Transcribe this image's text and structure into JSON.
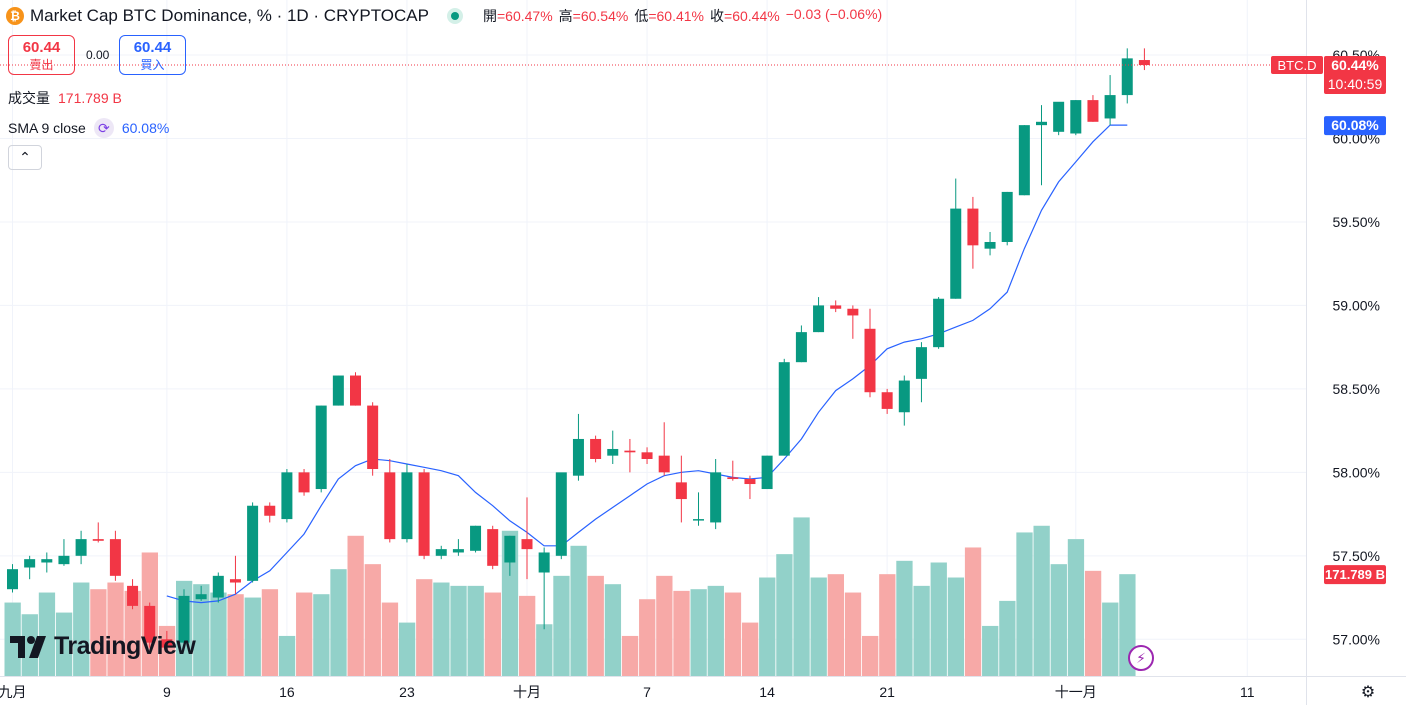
{
  "header": {
    "coin_glyph": "₿",
    "title": "Market Cap BTC Dominance, % · 1D · CRYPTOCAP",
    "ohlc": [
      {
        "k": "開",
        "v": "=60.47%"
      },
      {
        "k": "高",
        "v": "=60.54%"
      },
      {
        "k": "低",
        "v": "=60.41%"
      },
      {
        "k": "收",
        "v": "=60.44%"
      },
      {
        "k": "",
        "v": "−0.03 (−0.06%)"
      }
    ]
  },
  "trade": {
    "sell_price": "60.44",
    "sell_label": "賣出",
    "spread": "0.00",
    "buy_price": "60.44",
    "buy_label": "買入"
  },
  "legend": {
    "volume_label": "成交量",
    "volume_value": "171.789 B",
    "sma_label": "SMA 9 close",
    "sma_value": "60.08%",
    "collapse_glyph": "⌃"
  },
  "branding": {
    "logo_text": "TradingView"
  },
  "colors": {
    "up": "#089981",
    "down": "#f23645",
    "up_vol": "#92d1c9",
    "down_vol": "#f7a9a7",
    "sma": "#2962ff",
    "grid": "#f0f3fa"
  },
  "chart_data": {
    "type": "candlestick",
    "symbol_tag": "BTC.D",
    "y_axis": {
      "min": 56.78,
      "max": 60.62,
      "ticks": [
        "57.00%",
        "57.50%",
        "58.00%",
        "58.50%",
        "59.00%",
        "59.50%",
        "60.00%",
        "60.50%"
      ]
    },
    "x_axis": {
      "labels": [
        {
          "i": 0,
          "text": "九月"
        },
        {
          "i": 9,
          "text": "9"
        },
        {
          "i": 16,
          "text": "16"
        },
        {
          "i": 23,
          "text": "23"
        },
        {
          "i": 30,
          "text": "十月"
        },
        {
          "i": 37,
          "text": "7"
        },
        {
          "i": 44,
          "text": "14"
        },
        {
          "i": 51,
          "text": "21"
        },
        {
          "i": 62,
          "text": "十一月"
        },
        {
          "i": 72,
          "text": "11"
        }
      ]
    },
    "price_labels": {
      "last_price": "60.44%",
      "countdown": "10:40:59",
      "sma": "60.08%",
      "volume": "171.789 B"
    },
    "candles": [
      [
        57.3,
        57.45,
        57.28,
        57.42
      ],
      [
        57.43,
        57.5,
        57.36,
        57.48
      ],
      [
        57.46,
        57.52,
        57.4,
        57.48
      ],
      [
        57.45,
        57.6,
        57.44,
        57.5
      ],
      [
        57.5,
        57.65,
        57.45,
        57.6
      ],
      [
        57.6,
        57.7,
        57.58,
        57.59
      ],
      [
        57.6,
        57.65,
        57.35,
        57.38
      ],
      [
        57.32,
        57.36,
        57.18,
        57.2
      ],
      [
        57.2,
        57.22,
        56.95,
        56.98
      ],
      [
        57.0,
        57.05,
        56.92,
        56.95
      ],
      [
        56.98,
        57.3,
        56.95,
        57.26
      ],
      [
        57.24,
        57.32,
        57.23,
        57.27
      ],
      [
        57.25,
        57.4,
        57.22,
        57.38
      ],
      [
        57.36,
        57.5,
        57.27,
        57.34
      ],
      [
        57.35,
        57.82,
        57.34,
        57.8
      ],
      [
        57.8,
        57.82,
        57.7,
        57.74
      ],
      [
        57.72,
        58.02,
        57.7,
        58.0
      ],
      [
        58.0,
        58.02,
        57.86,
        57.88
      ],
      [
        57.9,
        58.4,
        57.88,
        58.4
      ],
      [
        58.4,
        58.58,
        58.4,
        58.58
      ],
      [
        58.58,
        58.6,
        58.4,
        58.4
      ],
      [
        58.4,
        58.42,
        57.98,
        58.02
      ],
      [
        58.0,
        58.08,
        57.58,
        57.6
      ],
      [
        57.6,
        58.05,
        57.58,
        58.0
      ],
      [
        58.0,
        58.02,
        57.48,
        57.5
      ],
      [
        57.5,
        57.56,
        57.48,
        57.54
      ],
      [
        57.52,
        57.6,
        57.5,
        57.54
      ],
      [
        57.53,
        57.68,
        57.52,
        57.68
      ],
      [
        57.66,
        57.68,
        57.42,
        57.44
      ],
      [
        57.46,
        57.62,
        57.38,
        57.62
      ],
      [
        57.6,
        57.85,
        57.36,
        57.54
      ],
      [
        57.4,
        57.55,
        57.06,
        57.52
      ],
      [
        57.5,
        57.98,
        57.48,
        58.0
      ],
      [
        57.98,
        58.35,
        57.95,
        58.2
      ],
      [
        58.2,
        58.22,
        58.06,
        58.08
      ],
      [
        58.1,
        58.25,
        58.05,
        58.14
      ],
      [
        58.13,
        58.2,
        58.0,
        58.12
      ],
      [
        58.12,
        58.15,
        58.05,
        58.08
      ],
      [
        58.1,
        58.3,
        57.98,
        58.0
      ],
      [
        57.94,
        58.1,
        57.7,
        57.84
      ],
      [
        57.72,
        57.88,
        57.68,
        57.72
      ],
      [
        57.7,
        58.08,
        57.66,
        58.0
      ],
      [
        57.97,
        58.07,
        57.95,
        57.96
      ],
      [
        57.96,
        57.98,
        57.84,
        57.93
      ],
      [
        57.9,
        58.1,
        57.9,
        58.1
      ],
      [
        58.1,
        58.68,
        58.1,
        58.66
      ],
      [
        58.66,
        58.88,
        58.66,
        58.84
      ],
      [
        58.84,
        59.05,
        58.84,
        59.0
      ],
      [
        59.0,
        59.03,
        58.96,
        58.98
      ],
      [
        58.98,
        59.0,
        58.8,
        58.94
      ],
      [
        58.86,
        58.98,
        58.45,
        58.48
      ],
      [
        58.48,
        58.5,
        58.35,
        58.38
      ],
      [
        58.36,
        58.58,
        58.28,
        58.55
      ],
      [
        58.56,
        58.78,
        58.42,
        58.75
      ],
      [
        58.75,
        59.05,
        58.74,
        59.04
      ],
      [
        59.04,
        59.76,
        59.04,
        59.58
      ],
      [
        59.58,
        59.65,
        59.22,
        59.36
      ],
      [
        59.34,
        59.44,
        59.3,
        59.38
      ],
      [
        59.38,
        59.68,
        59.36,
        59.68
      ],
      [
        59.66,
        60.08,
        59.66,
        60.08
      ],
      [
        60.08,
        60.2,
        59.72,
        60.1
      ],
      [
        60.04,
        60.2,
        60.02,
        60.22
      ],
      [
        60.03,
        60.23,
        60.02,
        60.23
      ],
      [
        60.23,
        60.26,
        60.1,
        60.1
      ],
      [
        60.12,
        60.38,
        60.08,
        60.26
      ],
      [
        60.26,
        60.54,
        60.21,
        60.48
      ],
      [
        60.47,
        60.54,
        60.41,
        60.44
      ]
    ],
    "volume_tops": [
      57.22,
      57.15,
      57.28,
      57.16,
      57.34,
      57.3,
      57.34,
      57.29,
      57.52,
      57.08,
      57.35,
      57.33,
      57.28,
      57.27,
      57.25,
      57.3,
      57.02,
      57.28,
      57.27,
      57.42,
      57.62,
      57.45,
      57.22,
      57.1,
      57.36,
      57.34,
      57.32,
      57.32,
      57.28,
      57.65,
      57.26,
      57.09,
      57.38,
      57.56,
      57.38,
      57.33,
      57.02,
      57.24,
      57.38,
      57.29,
      57.3,
      57.32,
      57.28,
      57.1,
      57.37,
      57.51,
      57.73,
      57.37,
      57.39,
      57.28,
      57.02,
      57.39,
      57.47,
      57.32,
      57.46,
      57.37,
      57.55,
      57.08,
      57.23,
      57.64,
      57.68,
      57.45,
      57.6,
      57.41,
      57.22,
      57.39
    ],
    "sma": [
      null,
      null,
      null,
      null,
      null,
      null,
      null,
      null,
      null,
      57.26,
      57.23,
      57.22,
      57.23,
      57.27,
      57.35,
      57.41,
      57.52,
      57.63,
      57.8,
      57.96,
      58.04,
      58.08,
      58.07,
      58.05,
      58.03,
      58.01,
      57.98,
      57.88,
      57.8,
      57.71,
      57.64,
      57.56,
      57.56,
      57.64,
      57.72,
      57.79,
      57.86,
      57.93,
      57.98,
      58.0,
      58.01,
      57.99,
      57.97,
      57.96,
      57.97,
      58.08,
      58.2,
      58.36,
      58.49,
      58.56,
      58.64,
      58.74,
      58.78,
      58.8,
      58.83,
      58.87,
      58.91,
      58.98,
      59.08,
      59.34,
      59.57,
      59.74,
      59.86,
      59.98,
      60.08,
      60.08
    ]
  }
}
